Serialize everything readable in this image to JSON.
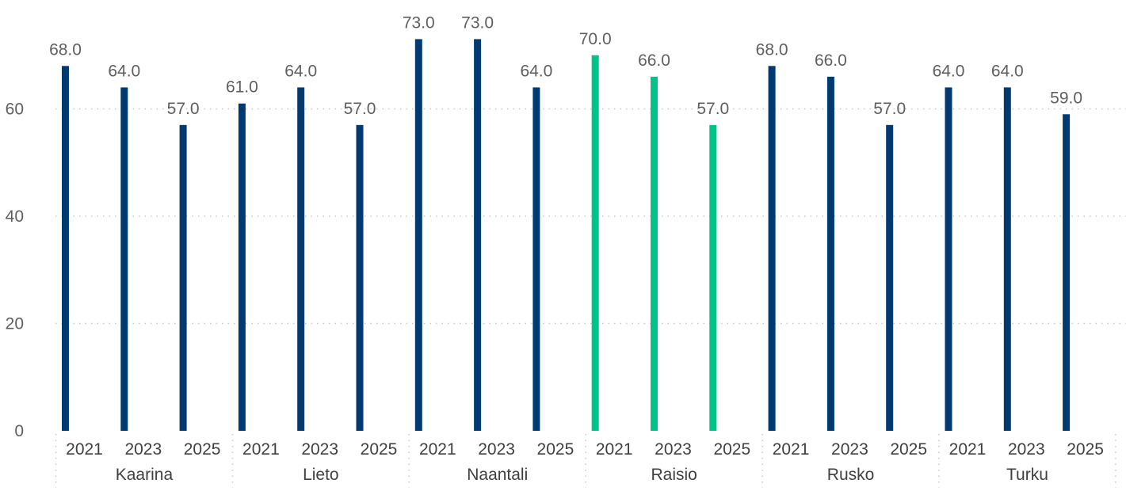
{
  "chart_data": {
    "type": "bar",
    "title": "",
    "xlabel": "",
    "ylabel": "",
    "ylim": [
      0,
      80
    ],
    "y_ticks": [
      0,
      20,
      40,
      60
    ],
    "grid": true,
    "default_color": "#003a70",
    "highlight_color": "#00c389",
    "groups": [
      {
        "name": "Kaarina",
        "years": [
          "2021",
          "2023",
          "2025"
        ],
        "values": [
          68.0,
          64.0,
          57.0
        ],
        "value_labels": [
          "68.0",
          "64.0",
          "57.0"
        ],
        "highlight": false
      },
      {
        "name": "Lieto",
        "years": [
          "2021",
          "2023",
          "2025"
        ],
        "values": [
          61.0,
          64.0,
          57.0
        ],
        "value_labels": [
          "61.0",
          "64.0",
          "57.0"
        ],
        "highlight": false
      },
      {
        "name": "Naantali",
        "years": [
          "2021",
          "2023",
          "2025"
        ],
        "values": [
          73.0,
          73.0,
          64.0
        ],
        "value_labels": [
          "73.0",
          "73.0",
          "64.0"
        ],
        "highlight": false
      },
      {
        "name": "Raisio",
        "years": [
          "2021",
          "2023",
          "2025"
        ],
        "values": [
          70.0,
          66.0,
          57.0
        ],
        "value_labels": [
          "70.0",
          "66.0",
          "57.0"
        ],
        "highlight": true
      },
      {
        "name": "Rusko",
        "years": [
          "2021",
          "2023",
          "2025"
        ],
        "values": [
          68.0,
          66.0,
          57.0
        ],
        "value_labels": [
          "68.0",
          "66.0",
          "57.0"
        ],
        "highlight": false
      },
      {
        "name": "Turku",
        "years": [
          "2021",
          "2023",
          "2025"
        ],
        "values": [
          64.0,
          64.0,
          59.0
        ],
        "value_labels": [
          "64.0",
          "64.0",
          "59.0"
        ],
        "highlight": false
      }
    ]
  }
}
